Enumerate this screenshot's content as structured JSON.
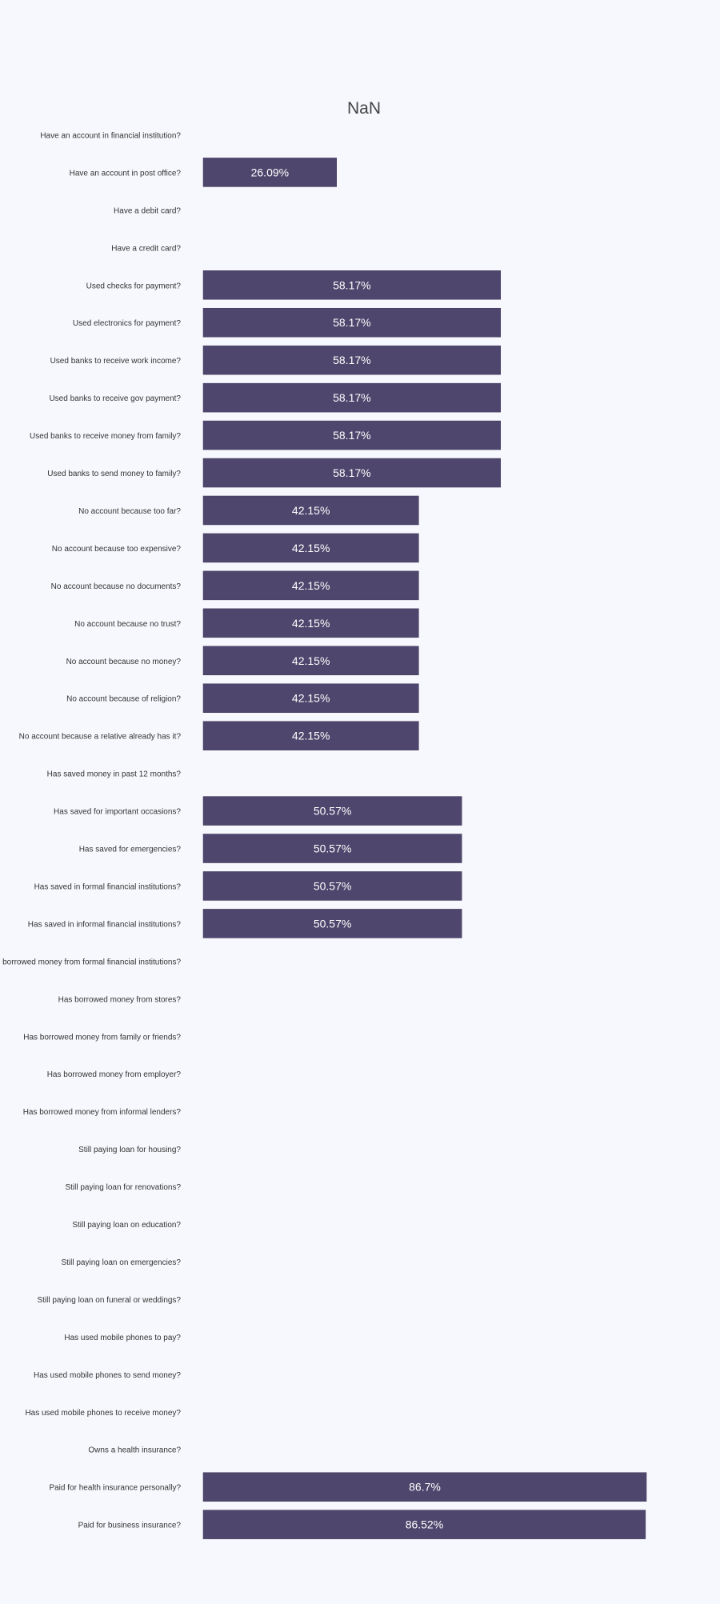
{
  "chart_data": {
    "type": "bar",
    "orientation": "horizontal",
    "title": "NaN",
    "xlabel": "",
    "ylabel": "",
    "xlim": [
      0,
      100
    ],
    "grid": false,
    "legend": "none",
    "bar_color": "#4f466d",
    "label_color": "#ffffff",
    "background": "#f7f8fd",
    "value_suffix": "%",
    "categories": [
      "Have an account in financial institution?",
      "Have an account in post office?",
      "Have a debit card?",
      "Have a credit card?",
      "Used checks for payment?",
      "Used electronics for payment?",
      "Used banks to receive work income?",
      "Used banks to receive gov payment?",
      "Used banks to receive money from family?",
      "Used banks to send money to family?",
      "No account because too far?",
      "No account because too expensive?",
      "No account because no documents?",
      "No account because no trust?",
      "No account because no money?",
      "No account because of religion?",
      "No account because a relative already has it?",
      "Has saved money in past 12 months?",
      "Has saved for important occasions?",
      "Has saved for emergencies?",
      "Has saved in formal financial institutions?",
      "Has saved in informal financial institutions?",
      "Has borrowed money from formal financial institutions?",
      "Has borrowed money from stores?",
      "Has borrowed money from family or friends?",
      "Has borrowed money from employer?",
      "Has borrowed money from informal lenders?",
      "Still paying loan for housing?",
      "Still paying loan for renovations?",
      "Still paying loan on education?",
      "Still paying loan on emergencies?",
      "Still paying loan on funeral or weddings?",
      "Has used mobile phones to pay?",
      "Has used mobile phones to send money?",
      "Has used mobile phones to receive money?",
      "Owns a health insurance?",
      "Paid for health insurance personally?",
      "Paid for business insurance?"
    ],
    "values": [
      null,
      26.09,
      null,
      null,
      58.17,
      58.17,
      58.17,
      58.17,
      58.17,
      58.17,
      42.15,
      42.15,
      42.15,
      42.15,
      42.15,
      42.15,
      42.15,
      null,
      50.57,
      50.57,
      50.57,
      50.57,
      null,
      null,
      null,
      null,
      null,
      null,
      null,
      null,
      null,
      null,
      null,
      null,
      null,
      null,
      86.7,
      86.52
    ],
    "value_labels": [
      "",
      "26.09%",
      "",
      "",
      "58.17%",
      "58.17%",
      "58.17%",
      "58.17%",
      "58.17%",
      "58.17%",
      "42.15%",
      "42.15%",
      "42.15%",
      "42.15%",
      "42.15%",
      "42.15%",
      "42.15%",
      "",
      "50.57%",
      "50.57%",
      "50.57%",
      "50.57%",
      "",
      "",
      "",
      "",
      "",
      "",
      "",
      "",
      "",
      "",
      "",
      "",
      "",
      "",
      "86.7%",
      "86.52%"
    ]
  }
}
